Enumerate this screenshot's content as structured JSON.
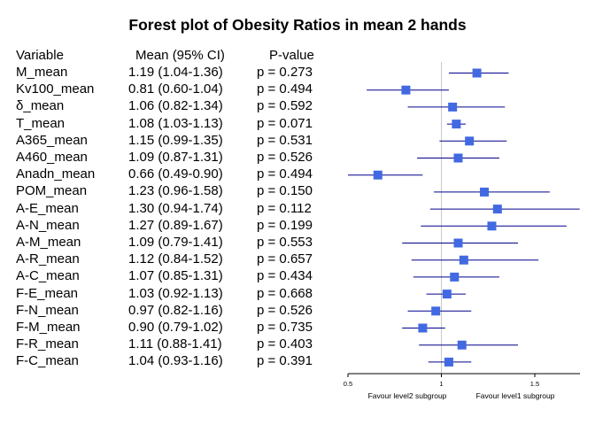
{
  "chart_data": {
    "type": "forest",
    "title": "Forest plot of Obesity Ratios in mean 2 hands",
    "columns": {
      "variable": "Variable",
      "mean": "Mean (95% CI)",
      "p": "P-value"
    },
    "rows": [
      {
        "variable": "M_mean",
        "mean_text": "1.19 (1.04-1.36)",
        "p_text": "p = 0.273",
        "estimate": 1.19,
        "lower": 1.04,
        "upper": 1.36
      },
      {
        "variable": "Kv100_mean",
        "mean_text": "0.81 (0.60-1.04)",
        "p_text": "p = 0.494",
        "estimate": 0.81,
        "lower": 0.6,
        "upper": 1.04
      },
      {
        "variable": "δ_mean",
        "mean_text": "1.06 (0.82-1.34)",
        "p_text": "p = 0.592",
        "estimate": 1.06,
        "lower": 0.82,
        "upper": 1.34
      },
      {
        "variable": "T_mean",
        "mean_text": "1.08 (1.03-1.13)",
        "p_text": "p = 0.071",
        "estimate": 1.08,
        "lower": 1.03,
        "upper": 1.13
      },
      {
        "variable": "A365_mean",
        "mean_text": "1.15 (0.99-1.35)",
        "p_text": "p = 0.531",
        "estimate": 1.15,
        "lower": 0.99,
        "upper": 1.35
      },
      {
        "variable": "A460_mean",
        "mean_text": "1.09 (0.87-1.31)",
        "p_text": "p = 0.526",
        "estimate": 1.09,
        "lower": 0.87,
        "upper": 1.31
      },
      {
        "variable": "Anadn_mean",
        "mean_text": "0.66 (0.49-0.90)",
        "p_text": "p = 0.494",
        "estimate": 0.66,
        "lower": 0.49,
        "upper": 0.9
      },
      {
        "variable": "POM_mean",
        "mean_text": "1.23 (0.96-1.58)",
        "p_text": "p = 0.150",
        "estimate": 1.23,
        "lower": 0.96,
        "upper": 1.58
      },
      {
        "variable": "A-E_mean",
        "mean_text": "1.30 (0.94-1.74)",
        "p_text": "p = 0.112",
        "estimate": 1.3,
        "lower": 0.94,
        "upper": 1.74
      },
      {
        "variable": "A-N_mean",
        "mean_text": "1.27 (0.89-1.67)",
        "p_text": "p = 0.199",
        "estimate": 1.27,
        "lower": 0.89,
        "upper": 1.67
      },
      {
        "variable": "A-M_mean",
        "mean_text": "1.09 (0.79-1.41)",
        "p_text": "p = 0.553",
        "estimate": 1.09,
        "lower": 0.79,
        "upper": 1.41
      },
      {
        "variable": "A-R_mean",
        "mean_text": "1.12 (0.84-1.52)",
        "p_text": "p = 0.657",
        "estimate": 1.12,
        "lower": 0.84,
        "upper": 1.52
      },
      {
        "variable": "A-C_mean",
        "mean_text": "1.07 (0.85-1.31)",
        "p_text": "p = 0.434",
        "estimate": 1.07,
        "lower": 0.85,
        "upper": 1.31
      },
      {
        "variable": "F-E_mean",
        "mean_text": "1.03 (0.92-1.13)",
        "p_text": "p = 0.668",
        "estimate": 1.03,
        "lower": 0.92,
        "upper": 1.13
      },
      {
        "variable": "F-N_mean",
        "mean_text": "0.97 (0.82-1.16)",
        "p_text": "p = 0.526",
        "estimate": 0.97,
        "lower": 0.82,
        "upper": 1.16
      },
      {
        "variable": "F-M_mean",
        "mean_text": "0.90 (0.79-1.02)",
        "p_text": "p = 0.735",
        "estimate": 0.9,
        "lower": 0.79,
        "upper": 1.02
      },
      {
        "variable": "F-R_mean",
        "mean_text": "1.11 (0.88-1.41)",
        "p_text": "p = 0.403",
        "estimate": 1.11,
        "lower": 0.88,
        "upper": 1.41
      },
      {
        "variable": "F-C_mean",
        "mean_text": "1.04 (0.93-1.16)",
        "p_text": "p = 0.391",
        "estimate": 1.04,
        "lower": 0.93,
        "upper": 1.16
      }
    ],
    "x_ticks": [
      "0.5",
      "1",
      "1.5"
    ],
    "xlim": [
      0.5,
      1.75
    ],
    "reference_line": 1,
    "favour_left": "Favour level2 subgroup",
    "favour_right": "Favour level1 subgroup",
    "colors": {
      "point": "#4169e1",
      "ci_line": "#00008b",
      "reference": "#c8c8c8",
      "axis": "#000000"
    }
  }
}
